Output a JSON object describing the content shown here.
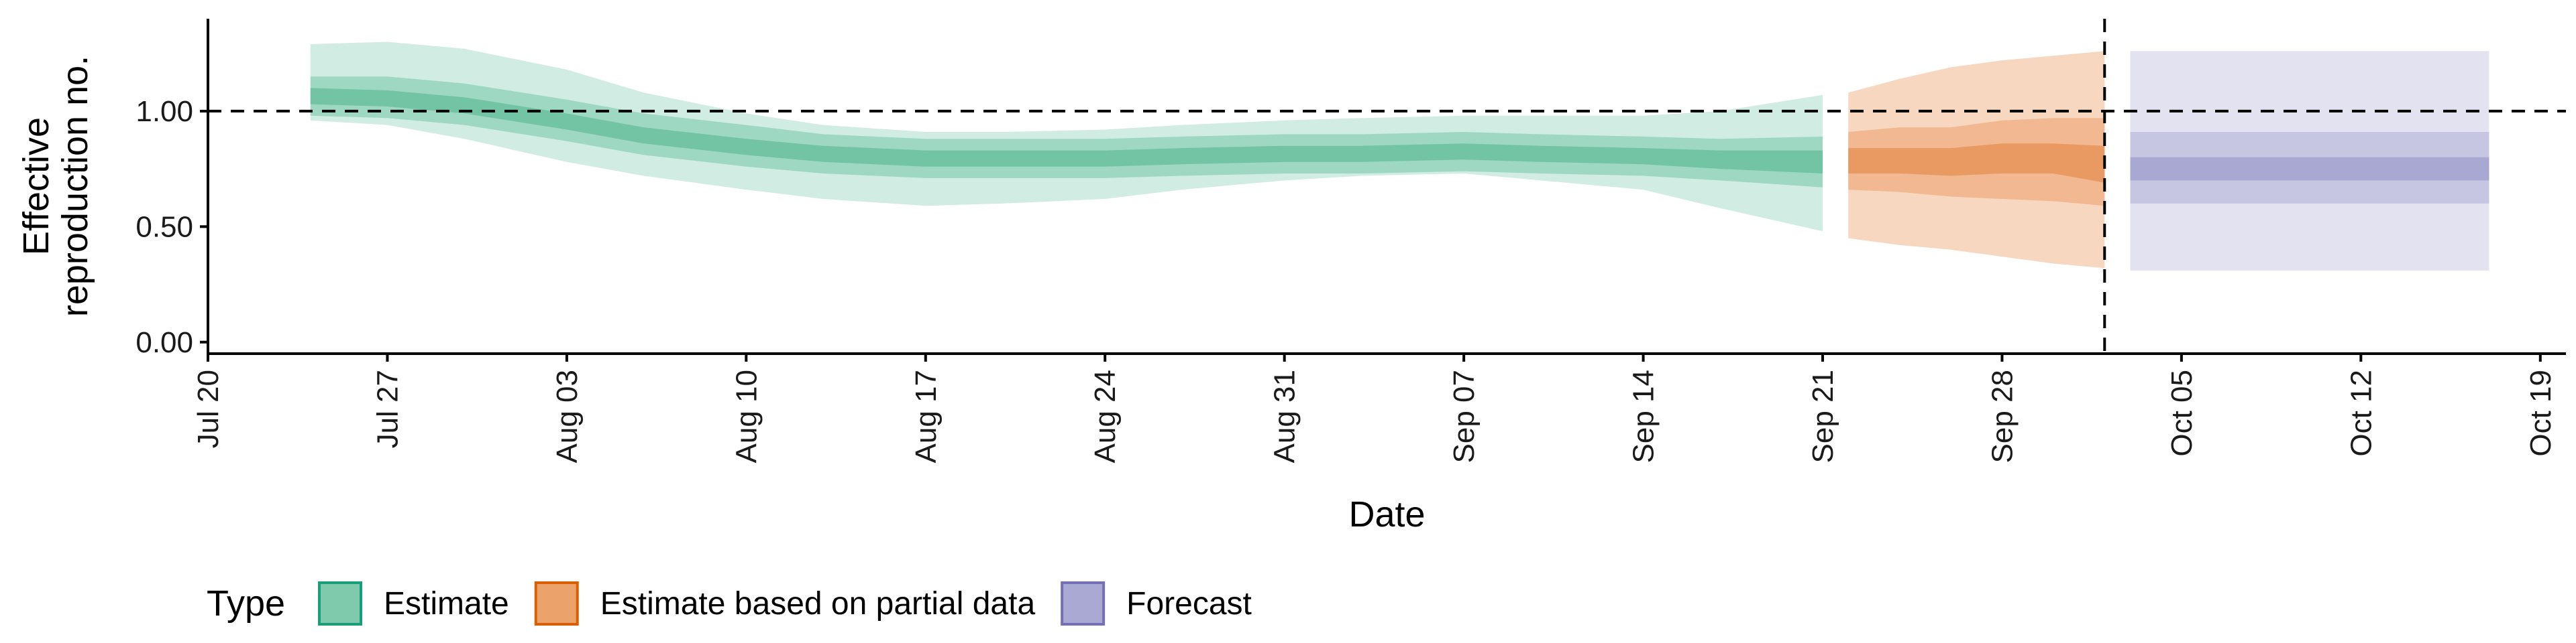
{
  "chart_data": {
    "type": "area",
    "xlabel": "Date",
    "ylabel_lines": [
      "Effective",
      "reproduction no."
    ],
    "x_axis": {
      "type": "date",
      "range": [
        "2020-07-20",
        "2020-10-20"
      ],
      "tick_dates": [
        "2020-07-20",
        "2020-07-27",
        "2020-08-03",
        "2020-08-10",
        "2020-08-17",
        "2020-08-24",
        "2020-08-31",
        "2020-09-07",
        "2020-09-14",
        "2020-09-21",
        "2020-09-28",
        "2020-10-05",
        "2020-10-12",
        "2020-10-19"
      ],
      "tick_labels": [
        "Jul 20",
        "Jul 27",
        "Aug 03",
        "Aug 10",
        "Aug 17",
        "Aug 24",
        "Aug 31",
        "Sep 07",
        "Sep 14",
        "Sep 21",
        "Sep 28",
        "Oct 05",
        "Oct 12",
        "Oct 19"
      ]
    },
    "y_axis": {
      "range": [
        -0.05,
        1.4
      ],
      "ticks": [
        0,
        0.5,
        1.0
      ],
      "tick_labels": [
        "0.00",
        "0.50",
        "1.00"
      ]
    },
    "reference_lines": {
      "horizontal_y": 1.0,
      "vertical_date": "2020-10-02"
    },
    "legend": {
      "title": "Type",
      "position": "bottom-left",
      "items": [
        {
          "label": "Estimate",
          "fill": "#7fcaad",
          "border": "#1b9e77"
        },
        {
          "label": "Estimate based on partial data",
          "fill": "#eba26b",
          "border": "#d95f02"
        },
        {
          "label": "Forecast",
          "fill": "#aaa9d3",
          "border": "#7570b3"
        }
      ]
    },
    "series": [
      {
        "name": "Estimate",
        "colors": {
          "outer": "#d1ece2",
          "middle": "#9fd8c2",
          "inner": "#73c4a4"
        },
        "x": [
          "2020-07-24",
          "2020-07-27",
          "2020-07-30",
          "2020-08-03",
          "2020-08-06",
          "2020-08-10",
          "2020-08-13",
          "2020-08-17",
          "2020-08-20",
          "2020-08-24",
          "2020-08-27",
          "2020-08-31",
          "2020-09-03",
          "2020-09-07",
          "2020-09-10",
          "2020-09-14",
          "2020-09-17",
          "2020-09-21"
        ],
        "median": [
          1.06,
          1.05,
          1.02,
          0.95,
          0.89,
          0.84,
          0.81,
          0.79,
          0.79,
          0.79,
          0.8,
          0.81,
          0.81,
          0.82,
          0.81,
          0.8,
          0.79,
          0.78
        ],
        "inner_low": [
          1.03,
          1.02,
          0.99,
          0.92,
          0.86,
          0.81,
          0.78,
          0.76,
          0.76,
          0.76,
          0.77,
          0.78,
          0.78,
          0.79,
          0.78,
          0.77,
          0.75,
          0.73
        ],
        "inner_high": [
          1.1,
          1.09,
          1.06,
          0.99,
          0.93,
          0.88,
          0.85,
          0.83,
          0.83,
          0.83,
          0.84,
          0.85,
          0.85,
          0.86,
          0.85,
          0.84,
          0.83,
          0.83
        ],
        "middle_low": [
          0.98,
          0.97,
          0.94,
          0.87,
          0.81,
          0.76,
          0.73,
          0.71,
          0.71,
          0.71,
          0.72,
          0.73,
          0.73,
          0.74,
          0.73,
          0.72,
          0.7,
          0.67
        ],
        "middle_high": [
          1.15,
          1.15,
          1.12,
          1.05,
          0.99,
          0.94,
          0.9,
          0.88,
          0.88,
          0.88,
          0.89,
          0.9,
          0.9,
          0.91,
          0.9,
          0.89,
          0.88,
          0.89
        ],
        "outer_low": [
          0.96,
          0.94,
          0.88,
          0.78,
          0.72,
          0.66,
          0.62,
          0.59,
          0.6,
          0.62,
          0.66,
          0.7,
          0.72,
          0.73,
          0.7,
          0.66,
          0.58,
          0.48
        ],
        "outer_high": [
          1.29,
          1.3,
          1.27,
          1.18,
          1.08,
          0.99,
          0.94,
          0.91,
          0.91,
          0.92,
          0.94,
          0.96,
          0.97,
          0.98,
          0.98,
          0.98,
          1.0,
          1.07
        ]
      },
      {
        "name": "Estimate based on partial data",
        "colors": {
          "outer": "#f8d7c0",
          "middle": "#f1b892",
          "inner": "#e99a63"
        },
        "x": [
          "2020-09-22",
          "2020-09-24",
          "2020-09-26",
          "2020-09-28",
          "2020-09-30",
          "2020-10-02"
        ],
        "median": [
          0.79,
          0.78,
          0.78,
          0.79,
          0.79,
          0.77
        ],
        "inner_low": [
          0.73,
          0.73,
          0.72,
          0.73,
          0.73,
          0.69
        ],
        "inner_high": [
          0.84,
          0.84,
          0.84,
          0.86,
          0.86,
          0.85
        ],
        "middle_low": [
          0.66,
          0.65,
          0.63,
          0.62,
          0.61,
          0.59
        ],
        "middle_high": [
          0.91,
          0.93,
          0.93,
          0.96,
          0.97,
          0.97
        ],
        "outer_low": [
          0.45,
          0.42,
          0.4,
          0.37,
          0.34,
          0.32
        ],
        "outer_high": [
          1.08,
          1.14,
          1.19,
          1.22,
          1.24,
          1.26
        ]
      },
      {
        "name": "Forecast",
        "colors": {
          "outer": "#e3e2f0",
          "middle": "#c6c5e2",
          "inner": "#a9a8d2"
        },
        "x": [
          "2020-10-03",
          "2020-10-17"
        ],
        "median": [
          0.75,
          0.75
        ],
        "inner_low": [
          0.7,
          0.7
        ],
        "inner_high": [
          0.8,
          0.8
        ],
        "middle_low": [
          0.6,
          0.6
        ],
        "middle_high": [
          0.91,
          0.91
        ],
        "outer_low": [
          0.31,
          0.31
        ],
        "outer_high": [
          1.26,
          1.26
        ]
      }
    ]
  }
}
